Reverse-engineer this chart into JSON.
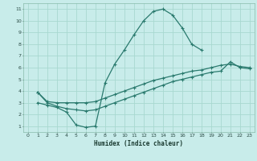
{
  "xlabel": "Humidex (Indice chaleur)",
  "bg_color": "#c8ecea",
  "grid_color": "#a8d8d0",
  "line_color": "#2a7a6e",
  "xlim": [
    -0.5,
    23.5
  ],
  "ylim": [
    0.5,
    11.5
  ],
  "xticks": [
    0,
    1,
    2,
    3,
    4,
    5,
    6,
    7,
    8,
    9,
    10,
    11,
    12,
    13,
    14,
    15,
    16,
    17,
    18,
    19,
    20,
    21,
    22,
    23
  ],
  "yticks": [
    1,
    2,
    3,
    4,
    5,
    6,
    7,
    8,
    9,
    10,
    11
  ],
  "line1_x": [
    1,
    2,
    3,
    4,
    5,
    6,
    7,
    8,
    9,
    10,
    11,
    12,
    13,
    14,
    15,
    16,
    17,
    18
  ],
  "line1_y": [
    3.0,
    2.8,
    2.6,
    2.2,
    1.1,
    0.9,
    1.0,
    4.7,
    6.3,
    7.5,
    8.8,
    10.0,
    10.8,
    11.0,
    10.5,
    9.4,
    8.0,
    7.5
  ],
  "line2_x": [
    1,
    2,
    3,
    4,
    5,
    6,
    7,
    8,
    9,
    10,
    11,
    12,
    13,
    14,
    15,
    16,
    17,
    18,
    19,
    20,
    21,
    22,
    23
  ],
  "line2_y": [
    3.9,
    3.1,
    3.0,
    3.0,
    3.0,
    3.0,
    3.1,
    3.4,
    3.7,
    4.0,
    4.3,
    4.6,
    4.9,
    5.1,
    5.3,
    5.5,
    5.7,
    5.8,
    6.0,
    6.2,
    6.3,
    6.1,
    6.0
  ],
  "line3_x": [
    1,
    2,
    3,
    4,
    5,
    6,
    7,
    8,
    9,
    10,
    11,
    12,
    13,
    14,
    15,
    16,
    17,
    18,
    19,
    20,
    21,
    22,
    23
  ],
  "line3_y": [
    3.9,
    3.0,
    2.7,
    2.5,
    2.4,
    2.3,
    2.4,
    2.7,
    3.0,
    3.3,
    3.6,
    3.9,
    4.2,
    4.5,
    4.8,
    5.0,
    5.2,
    5.4,
    5.6,
    5.7,
    6.5,
    6.0,
    5.9
  ]
}
